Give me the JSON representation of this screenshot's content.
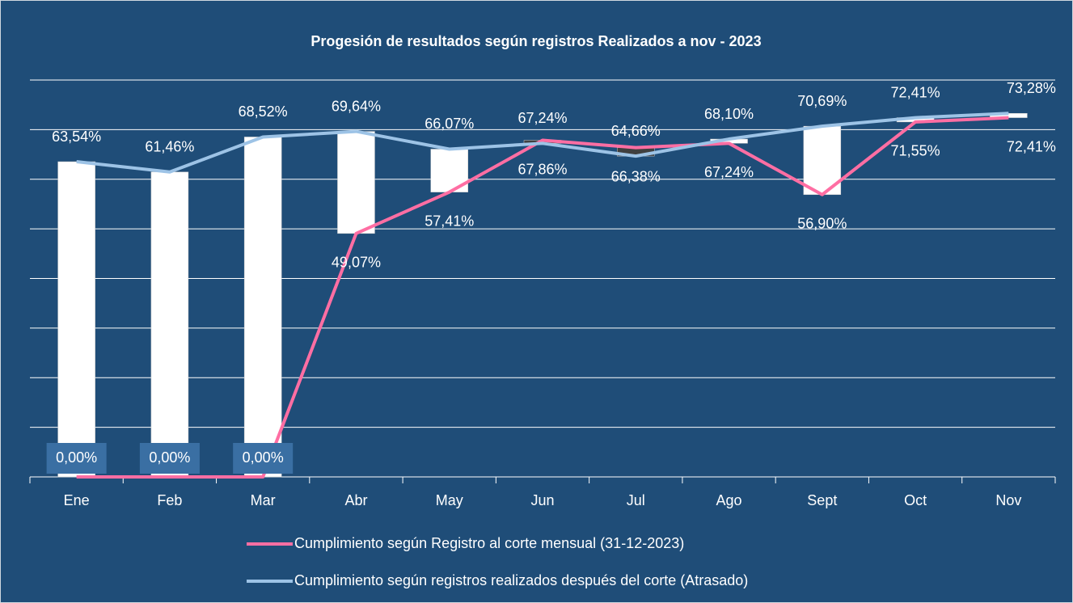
{
  "chart_data": {
    "type": "line",
    "title": "Progesión de resultados según registros Realizados a nov - 2023",
    "categories": [
      "Ene",
      "Feb",
      "Mar",
      "Abr",
      "May",
      "Jun",
      "Jul",
      "Ago",
      "Sept",
      "Oct",
      "Nov"
    ],
    "series": [
      {
        "name": "Cumplimiento según Registro al corte  mensual (31-12-2023)",
        "color": "#ff6ea3",
        "values": [
          0,
          0,
          0,
          49.07,
          57.41,
          67.86,
          66.38,
          67.24,
          56.9,
          71.55,
          72.41
        ],
        "value_labels": [
          "0,00%",
          "0,00%",
          "0,00%",
          "49,07%",
          "57,41%",
          "67,86%",
          "66,38%",
          "67,24%",
          "56,90%",
          "71,55%",
          "72,41%"
        ]
      },
      {
        "name": "Cumplimiento según registros realizados después del corte (Atrasado)",
        "color": "#9dc3e6",
        "values": [
          63.54,
          61.46,
          68.52,
          69.64,
          66.07,
          67.24,
          64.66,
          68.1,
          70.69,
          72.41,
          73.28
        ],
        "value_labels": [
          "63,54%",
          "61,46%",
          "68,52%",
          "69,64%",
          "66,07%",
          "67,24%",
          "64,66%",
          "68,10%",
          "70,69%",
          "72,41%",
          "73,28%"
        ]
      }
    ],
    "ylim": [
      0,
      80
    ],
    "yticks": [
      0,
      10,
      20,
      30,
      40,
      50,
      60,
      70,
      80
    ],
    "grid": true,
    "up_bar_color": "#ffffff",
    "down_bar_color": "#404040"
  }
}
